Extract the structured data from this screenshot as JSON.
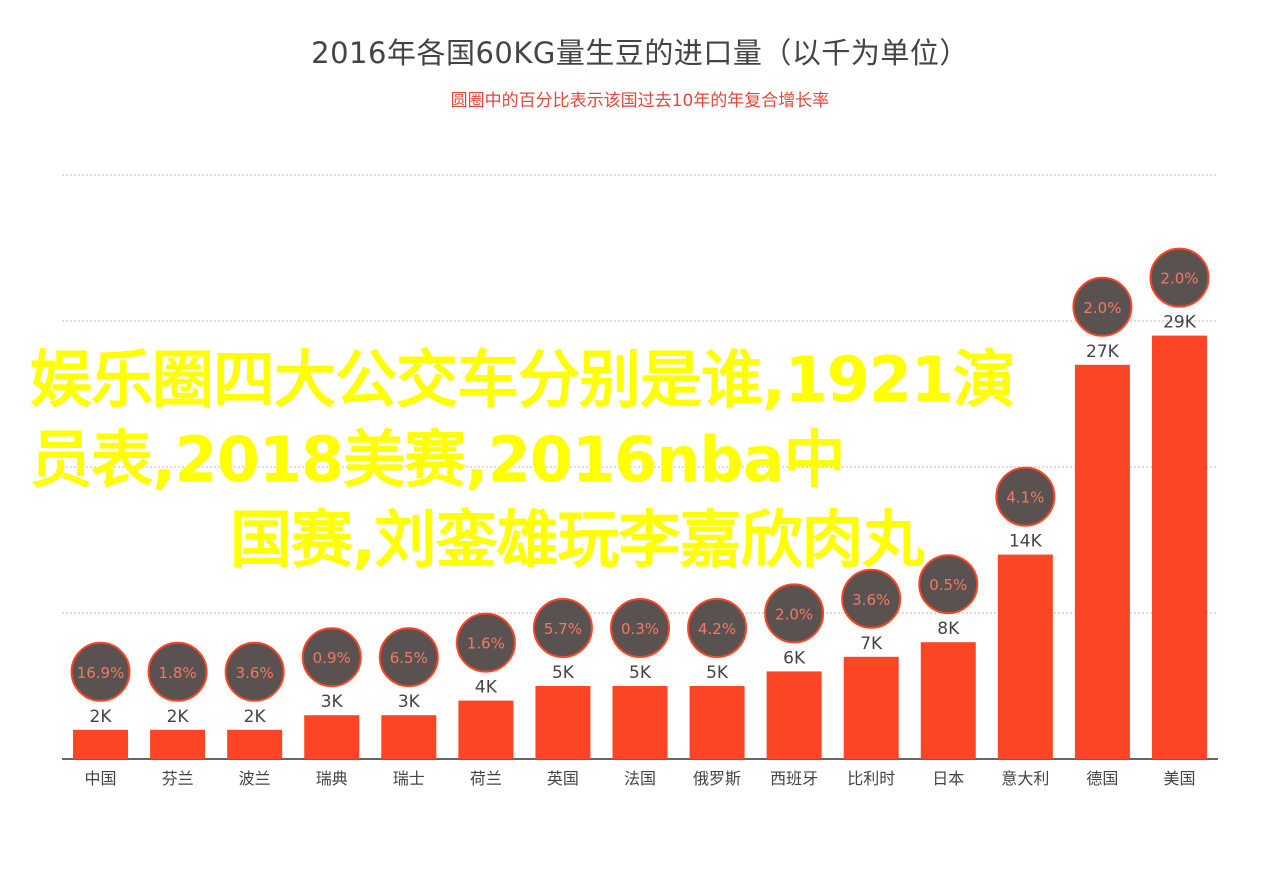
{
  "chart_data": {
    "type": "bar",
    "title": "2016年各国60KG量生豆的进口量（以千为单位）",
    "subtitle": "圆圈中的百分比表示该国过去10年的年复合增长率",
    "categories": [
      "中国",
      "芬兰",
      "波兰",
      "瑞典",
      "瑞士",
      "荷兰",
      "英国",
      "法国",
      "俄罗斯",
      "西班牙",
      "比利时",
      "日本",
      "意大利",
      "德国",
      "美国"
    ],
    "series": [
      {
        "values": [
          2,
          2,
          2,
          3,
          3,
          4,
          5,
          5,
          5,
          6,
          7,
          8,
          14,
          27,
          29
        ],
        "labels": [
          "2K",
          "2K",
          "2K",
          "3K",
          "3K",
          "4K",
          "5K",
          "5K",
          "5K",
          "6K",
          "7K",
          "8K",
          "14K",
          "27K",
          "29K"
        ],
        "cagr": [
          "16.9%",
          "1.8%",
          "3.6%",
          "0.9%",
          "6.5%",
          "1.6%",
          "5.7%",
          "0.3%",
          "4.2%",
          "2.0%",
          "3.6%",
          "0.5%",
          "4.1%",
          "2.0%",
          "2.0%"
        ]
      }
    ],
    "ylim": [
      0,
      40
    ],
    "grid": true,
    "bar_color": "#fc4524",
    "circle_color": "#5a5250",
    "circle_border": "#fc4524",
    "circle_text_color": "#f07a64"
  },
  "overlay": {
    "line1": "娱乐圈四大公交车分别是谁,1921演",
    "line2": "员表,2018美赛,2016nba中",
    "line3": "国赛,刘銮雄玩李嘉欣肉丸"
  }
}
